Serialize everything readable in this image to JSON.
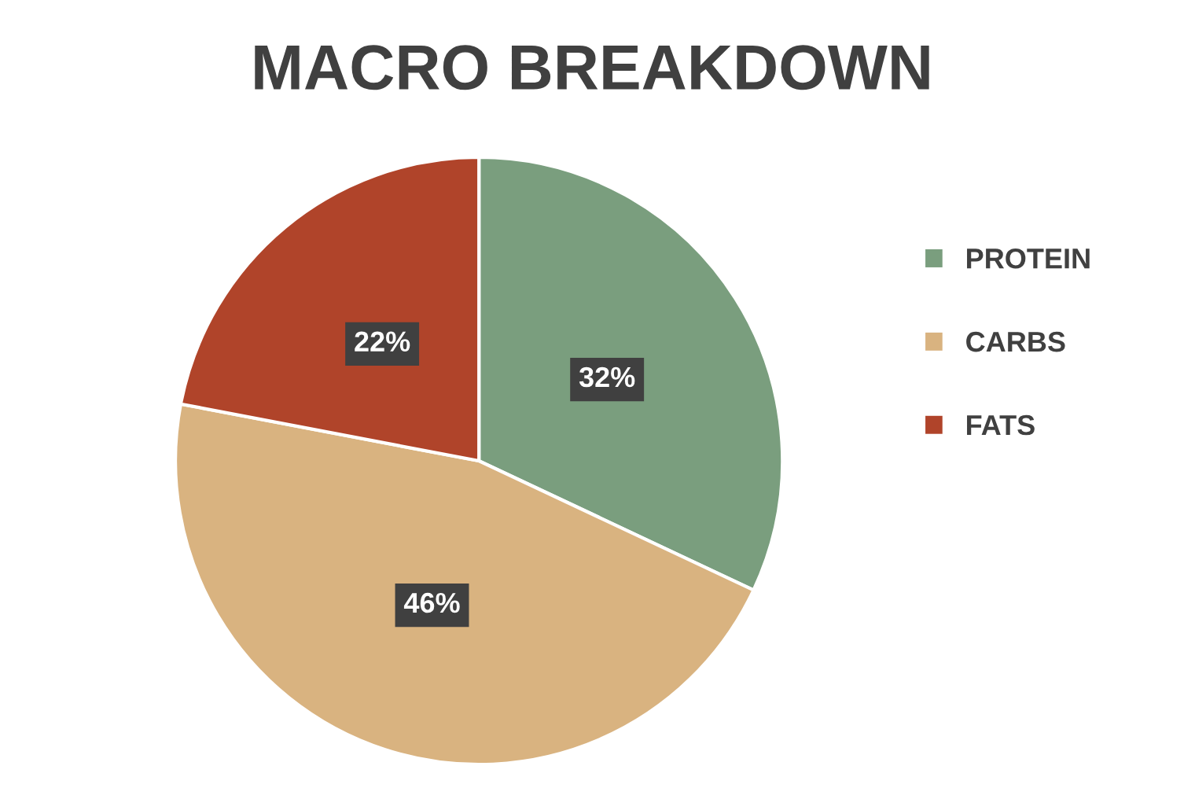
{
  "chart_data": {
    "type": "pie",
    "title": "MACRO BREAKDOWN",
    "categories": [
      "PROTEIN",
      "CARBS",
      "FATS"
    ],
    "values": [
      32,
      46,
      22
    ],
    "colors": [
      "#7a9e7e",
      "#d9b380",
      "#b0442a"
    ],
    "value_labels": [
      "32%",
      "46%",
      "22%"
    ],
    "legend": "right"
  }
}
